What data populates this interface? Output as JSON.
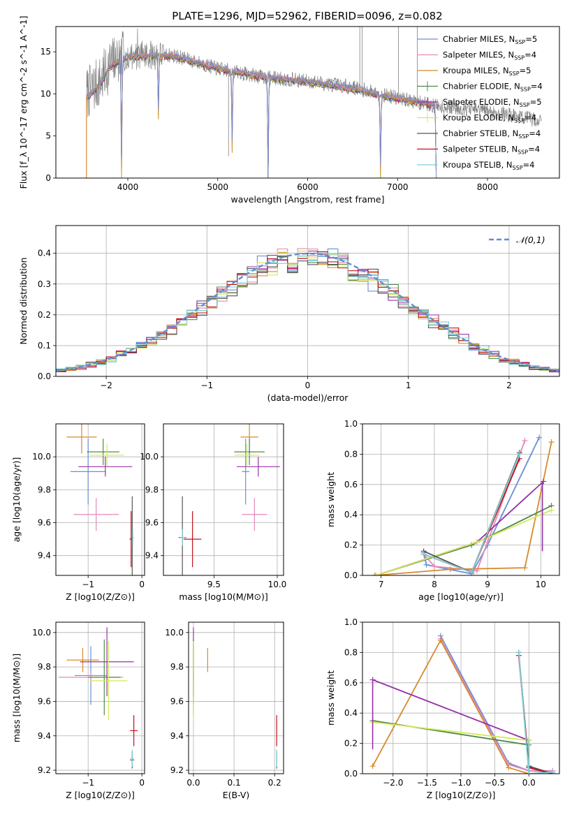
{
  "figure_title": "PLATE=1296, MJD=52962, FIBERID=0096, z=0.082",
  "model_colors": {
    "Chabrier MILES": "#6a8fd6",
    "Salpeter MILES": "#e38ab8",
    "Kroupa MILES": "#d8892b",
    "Chabrier ELODIE": "#4f8a4a",
    "Salpeter ELODIE": "#9632a8",
    "Kroupa ELODIE": "#d4e85a",
    "Chabrier STELIB": "#555555",
    "Salpeter STELIB": "#c2101c",
    "Kroupa STELIB": "#7ecfd4"
  },
  "chart_data": [
    {
      "id": "spectrum",
      "type": "line",
      "xlabel": "wavelength [Angstrom, rest frame]",
      "ylabel": "Flux [f_λ 10^-17 erg cm^-2 s^-1 A^-1]",
      "xlim": [
        3200,
        8800
      ],
      "ylim": [
        0,
        18
      ],
      "xticks": [
        4000,
        5000,
        6000,
        7000,
        8000
      ],
      "yticks": [
        0,
        5,
        10,
        15
      ],
      "grid": false,
      "legend_position": "top-right",
      "legend": [
        {
          "model": "Chabrier MILES",
          "nssp": "5"
        },
        {
          "model": "Salpeter MILES",
          "nssp": "4"
        },
        {
          "model": "Kroupa MILES",
          "nssp": "5"
        },
        {
          "model": "Chabrier ELODIE",
          "nssp": "4"
        },
        {
          "model": "Salpeter ELODIE",
          "nssp": "5"
        },
        {
          "model": "Kroupa ELODIE",
          "nssp": "4"
        },
        {
          "model": "Chabrier STELIB",
          "nssp": "4"
        },
        {
          "model": "Salpeter STELIB",
          "nssp": "4"
        },
        {
          "model": "Kroupa STELIB",
          "nssp": "4"
        }
      ],
      "data_series": {
        "name": "data",
        "color": "#808080",
        "x_range": [
          3540,
          8600
        ],
        "continuum": [
          [
            3540,
            10.0
          ],
          [
            3700,
            11.5
          ],
          [
            3800,
            13.5
          ],
          [
            4000,
            14.6
          ],
          [
            4500,
            14.6
          ],
          [
            5000,
            13.0
          ],
          [
            5500,
            12.0
          ],
          [
            6000,
            11.5
          ],
          [
            6500,
            10.8
          ],
          [
            7000,
            9.5
          ],
          [
            7400,
            8.6
          ],
          [
            8000,
            8.0
          ],
          [
            8600,
            6.8
          ]
        ]
      },
      "model_continuum": [
        [
          3540,
          9.5
        ],
        [
          3700,
          11.2
        ],
        [
          3800,
          13.2
        ],
        [
          4000,
          14.4
        ],
        [
          4500,
          14.5
        ],
        [
          5000,
          13.0
        ],
        [
          5500,
          12.0
        ],
        [
          6000,
          11.4
        ],
        [
          6500,
          10.6
        ],
        [
          7000,
          9.4
        ],
        [
          7430,
          8.6
        ]
      ],
      "model_dips": [
        {
          "x": 3930,
          "y": 0.0
        },
        {
          "x": 4340,
          "y": 7.0
        },
        {
          "x": 5160,
          "y": 3.0
        },
        {
          "x": 5560,
          "y": 0.0
        },
        {
          "x": 6810,
          "y": 0.0
        },
        {
          "x": 7430,
          "y": 0.0
        }
      ]
    },
    {
      "id": "residuals",
      "type": "histogram",
      "xlabel": "(data-model)/error",
      "ylabel": "Normed distribution",
      "xlim": [
        -2.5,
        2.5
      ],
      "ylim": [
        0,
        0.49
      ],
      "xticks": [
        -2,
        -1,
        0,
        1,
        2
      ],
      "yticks": [
        0.0,
        0.1,
        0.2,
        0.3,
        0.4
      ],
      "grid": true,
      "legend_position": "top-right",
      "legend": [
        {
          "name": "𝒩(0,1)",
          "style": "dashed",
          "color": "#5f8fd4"
        }
      ],
      "bin_width": 0.1,
      "reference_curve": "normal(0,1)"
    },
    {
      "id": "age-vs-Z",
      "type": "errorbar",
      "xlabel": "Z [log10(Z/Z⊙)]",
      "ylabel": "age [log10(age/yr)]",
      "xlim": [
        -1.6,
        0.05
      ],
      "ylim": [
        9.28,
        10.2
      ],
      "xticks": [
        -1,
        0
      ],
      "yticks": [
        9.4,
        9.6,
        9.8,
        10.0
      ],
      "grid": true,
      "points": [
        {
          "model": "Chabrier MILES",
          "x": -1.0,
          "xerr": 0.33,
          "y": 9.91,
          "yerr": 0.2
        },
        {
          "model": "Salpeter MILES",
          "x": -0.85,
          "xerr": 0.42,
          "y": 9.65,
          "yerr": 0.1
        },
        {
          "model": "Kroupa MILES",
          "x": -1.12,
          "xerr": 0.28,
          "y": 10.12,
          "yerr": 0.1
        },
        {
          "model": "Chabrier ELODIE",
          "x": -0.72,
          "xerr": 0.3,
          "y": 10.03,
          "yerr": 0.08
        },
        {
          "model": "Salpeter ELODIE",
          "x": -0.68,
          "xerr": 0.5,
          "y": 9.94,
          "yerr": 0.06
        },
        {
          "model": "Kroupa ELODIE",
          "x": -0.65,
          "xerr": 0.32,
          "y": 10.01,
          "yerr": 0.07
        },
        {
          "model": "Chabrier STELIB",
          "x": -0.18,
          "xerr": 0.03,
          "y": 9.51,
          "yerr": 0.25
        },
        {
          "model": "Salpeter STELIB",
          "x": -0.2,
          "xerr": 0.03,
          "y": 9.5,
          "yerr": 0.17
        },
        {
          "model": "Kroupa STELIB",
          "x": -0.17,
          "xerr": 0.02,
          "y": 9.51,
          "yerr": 0.05
        }
      ]
    },
    {
      "id": "age-vs-mass",
      "type": "errorbar",
      "xlabel": "mass [log10(M/M⊙)]",
      "ylabel": "",
      "xlim": [
        9.1,
        10.05
      ],
      "ylim": [
        9.28,
        10.2
      ],
      "xticks": [
        9.5,
        10.0
      ],
      "yticks": [
        9.4,
        9.6,
        9.8,
        10.0
      ],
      "grid": true,
      "points": [
        {
          "model": "Chabrier MILES",
          "x": 9.75,
          "xerr": 0.03,
          "y": 9.91,
          "yerr": 0.2
        },
        {
          "model": "Salpeter MILES",
          "x": 9.82,
          "xerr": 0.1,
          "y": 9.65,
          "yerr": 0.1
        },
        {
          "model": "Kroupa MILES",
          "x": 9.78,
          "xerr": 0.07,
          "y": 10.12,
          "yerr": 0.1
        },
        {
          "model": "Chabrier ELODIE",
          "x": 9.78,
          "xerr": 0.12,
          "y": 10.03,
          "yerr": 0.08
        },
        {
          "model": "Salpeter ELODIE",
          "x": 9.85,
          "xerr": 0.17,
          "y": 9.94,
          "yerr": 0.06
        },
        {
          "model": "Kroupa ELODIE",
          "x": 9.76,
          "xerr": 0.1,
          "y": 10.01,
          "yerr": 0.07
        },
        {
          "model": "Chabrier STELIB",
          "x": 9.25,
          "xerr": 0.03,
          "y": 9.51,
          "yerr": 0.25
        },
        {
          "model": "Salpeter STELIB",
          "x": 9.33,
          "xerr": 0.07,
          "y": 9.5,
          "yerr": 0.17
        },
        {
          "model": "Kroupa STELIB",
          "x": 9.25,
          "xerr": 0.02,
          "y": 9.51,
          "yerr": 0.05
        }
      ]
    },
    {
      "id": "weight-vs-age",
      "type": "line",
      "xlabel": "age [log10(age/yr)]",
      "ylabel": "mass weight",
      "xlim": [
        6.65,
        10.35
      ],
      "ylim": [
        0.0,
        1.0
      ],
      "xticks": [
        7,
        8,
        9,
        10
      ],
      "yticks": [
        0.0,
        0.2,
        0.4,
        0.6,
        0.8,
        1.0
      ],
      "grid": true,
      "series": [
        {
          "model": "Chabrier MILES",
          "points": [
            [
              7.8,
              0.15
            ],
            [
              7.85,
              0.07
            ],
            [
              8.7,
              0.01
            ],
            [
              9.0,
              0.2
            ],
            [
              9.97,
              0.91
            ]
          ]
        },
        {
          "model": "Salpeter MILES",
          "points": [
            [
              7.8,
              0.14
            ],
            [
              8.0,
              0.06
            ],
            [
              8.8,
              0.03
            ],
            [
              9.0,
              0.22
            ],
            [
              9.7,
              0.89
            ]
          ]
        },
        {
          "model": "Kroupa MILES",
          "points": [
            [
              6.88,
              0.0
            ],
            [
              8.3,
              0.04
            ],
            [
              9.7,
              0.05
            ],
            [
              10.2,
              0.88
            ]
          ]
        },
        {
          "model": "Chabrier ELODIE",
          "points": [
            [
              6.9,
              0.0
            ],
            [
              8.7,
              0.2
            ],
            [
              10.2,
              0.46
            ]
          ]
        },
        {
          "model": "Salpeter ELODIE",
          "points": [
            [
              6.9,
              0.0
            ],
            [
              8.8,
              0.22
            ],
            [
              10.05,
              0.62
            ]
          ]
        },
        {
          "model": "Kroupa ELODIE",
          "points": [
            [
              6.9,
              0.0
            ],
            [
              8.8,
              0.22
            ],
            [
              10.2,
              0.43
            ]
          ]
        },
        {
          "model": "Chabrier STELIB",
          "points": [
            [
              7.8,
              0.16
            ],
            [
              8.7,
              0.02
            ],
            [
              9.6,
              0.81
            ]
          ]
        },
        {
          "model": "Salpeter STELIB",
          "points": [
            [
              7.8,
              0.14
            ],
            [
              8.7,
              0.02
            ],
            [
              9.6,
              0.77
            ]
          ]
        },
        {
          "model": "Kroupa STELIB",
          "points": [
            [
              7.8,
              0.14
            ],
            [
              8.7,
              0.02
            ],
            [
              9.6,
              0.8
            ]
          ]
        }
      ]
    },
    {
      "id": "mass-vs-Z",
      "type": "errorbar",
      "xlabel": "Z [log10(Z/Z⊙)]",
      "ylabel": "mass [log10(M/M⊙)]",
      "xlim": [
        -1.6,
        0.05
      ],
      "ylim": [
        9.18,
        10.06
      ],
      "xticks": [
        -1,
        0
      ],
      "yticks": [
        9.2,
        9.4,
        9.6,
        9.8,
        10.0
      ],
      "grid": true,
      "points": [
        {
          "model": "Chabrier MILES",
          "x": -0.95,
          "xerr": 0.3,
          "y": 9.75,
          "yerr": 0.17
        },
        {
          "model": "Salpeter MILES",
          "x": -0.95,
          "xerr": 0.6,
          "y": 9.74,
          "yerr": 0.03
        },
        {
          "model": "Kroupa MILES",
          "x": -1.1,
          "xerr": 0.3,
          "y": 9.84,
          "yerr": 0.07
        },
        {
          "model": "Chabrier ELODIE",
          "x": -0.7,
          "xerr": 0.3,
          "y": 9.74,
          "yerr": 0.22
        },
        {
          "model": "Salpeter ELODIE",
          "x": -0.65,
          "xerr": 0.5,
          "y": 9.83,
          "yerr": 0.2
        },
        {
          "model": "Kroupa ELODIE",
          "x": -0.62,
          "xerr": 0.35,
          "y": 9.72,
          "yerr": 0.23
        },
        {
          "model": "Chabrier STELIB",
          "x": -0.18,
          "xerr": 0.04,
          "y": 9.26,
          "yerr": 0.05
        },
        {
          "model": "Salpeter STELIB",
          "x": -0.15,
          "xerr": 0.07,
          "y": 9.43,
          "yerr": 0.09
        },
        {
          "model": "Kroupa STELIB",
          "x": -0.18,
          "xerr": 0.03,
          "y": 9.27,
          "yerr": 0.05
        }
      ]
    },
    {
      "id": "mass-vs-EBV",
      "type": "errorbar",
      "xlabel": "E(B-V)",
      "ylabel": "",
      "xlim": [
        -0.012,
        0.222
      ],
      "ylim": [
        9.18,
        10.06
      ],
      "xticks": [
        0.0,
        0.1,
        0.2
      ],
      "yticks": [
        9.2,
        9.4,
        9.6,
        9.8,
        10.0
      ],
      "grid": true,
      "points": [
        {
          "model": "Chabrier MILES",
          "x": 0.0,
          "xerr": 0.0,
          "y": 9.75,
          "yerr": 0.17
        },
        {
          "model": "Salpeter MILES",
          "x": 0.0,
          "xerr": 0.0,
          "y": 9.74,
          "yerr": 0.03
        },
        {
          "model": "Kroupa MILES",
          "x": 0.035,
          "xerr": 0.0,
          "y": 9.84,
          "yerr": 0.07
        },
        {
          "model": "Chabrier ELODIE",
          "x": 0.0,
          "xerr": 0.0,
          "y": 9.74,
          "yerr": 0.22
        },
        {
          "model": "Salpeter ELODIE",
          "x": 0.0,
          "xerr": 0.0,
          "y": 9.83,
          "yerr": 0.2
        },
        {
          "model": "Kroupa ELODIE",
          "x": 0.0,
          "xerr": 0.0,
          "y": 9.72,
          "yerr": 0.23
        },
        {
          "model": "Chabrier STELIB",
          "x": 0.205,
          "xerr": 0.0,
          "y": 9.26,
          "yerr": 0.05
        },
        {
          "model": "Salpeter STELIB",
          "x": 0.205,
          "xerr": 0.0,
          "y": 9.43,
          "yerr": 0.09
        },
        {
          "model": "Kroupa STELIB",
          "x": 0.205,
          "xerr": 0.0,
          "y": 9.27,
          "yerr": 0.05
        }
      ]
    },
    {
      "id": "weight-vs-Z",
      "type": "line",
      "xlabel": "Z [log10(Z/Z⊙)]",
      "ylabel": "mass weight",
      "xlim": [
        -2.45,
        0.45
      ],
      "ylim": [
        0.0,
        1.0
      ],
      "xticks": [
        -2.0,
        -1.5,
        -1.0,
        -0.5,
        0.0
      ],
      "yticks": [
        0.0,
        0.2,
        0.4,
        0.6,
        0.8,
        1.0
      ],
      "grid": true,
      "series": [
        {
          "model": "Chabrier MILES",
          "points": [
            [
              -1.3,
              0.91
            ],
            [
              -0.3,
              0.07
            ],
            [
              0.0,
              0.02
            ],
            [
              0.35,
              0.01
            ]
          ]
        },
        {
          "model": "Salpeter MILES",
          "points": [
            [
              -1.3,
              0.89
            ],
            [
              -0.3,
              0.06
            ],
            [
              0.0,
              0.02
            ],
            [
              0.35,
              0.02
            ]
          ]
        },
        {
          "model": "Kroupa MILES",
          "points": [
            [
              -2.3,
              0.05
            ],
            [
              -1.3,
              0.88
            ],
            [
              -0.3,
              0.04
            ],
            [
              0.0,
              0.0
            ]
          ]
        },
        {
          "model": "Chabrier ELODIE",
          "points": [
            [
              -2.3,
              0.35
            ],
            [
              0.0,
              0.19
            ],
            [
              0.0,
              0.0
            ]
          ]
        },
        {
          "model": "Salpeter ELODIE",
          "points": [
            [
              -2.3,
              0.62
            ],
            [
              0.0,
              0.22
            ],
            [
              0.0,
              0.0
            ]
          ]
        },
        {
          "model": "Kroupa ELODIE",
          "points": [
            [
              -2.3,
              0.34
            ],
            [
              0.0,
              0.22
            ],
            [
              0.0,
              0.0
            ]
          ]
        },
        {
          "model": "Chabrier STELIB",
          "points": [
            [
              -0.15,
              0.8
            ],
            [
              0.0,
              0.05
            ],
            [
              0.35,
              0.0
            ]
          ]
        },
        {
          "model": "Salpeter STELIB",
          "points": [
            [
              -0.15,
              0.78
            ],
            [
              0.0,
              0.04
            ],
            [
              0.35,
              0.0
            ]
          ]
        },
        {
          "model": "Kroupa STELIB",
          "points": [
            [
              -0.15,
              0.8
            ],
            [
              0.0,
              0.0
            ],
            [
              0.35,
              0.01
            ]
          ]
        }
      ]
    }
  ]
}
